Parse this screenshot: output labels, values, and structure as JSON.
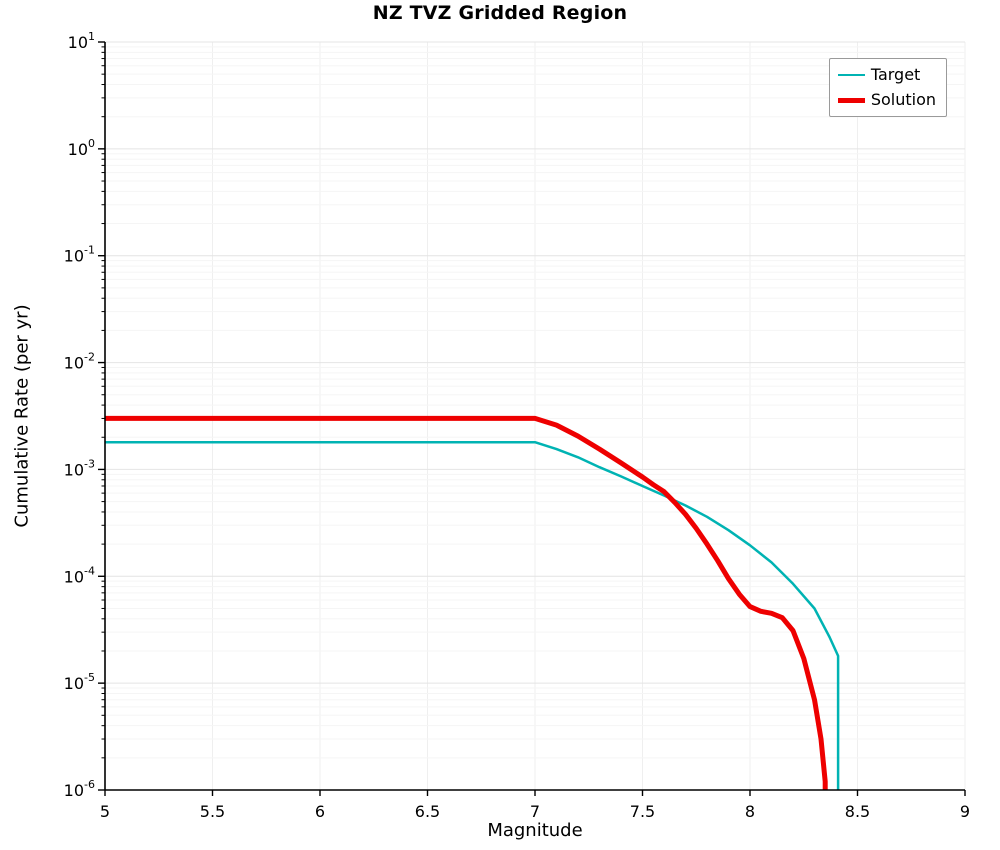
{
  "chart_data": {
    "type": "line",
    "title": "NZ TVZ Gridded Region",
    "xlabel": "Magnitude",
    "ylabel": "Cumulative Rate (per yr)",
    "xlim": [
      5,
      9
    ],
    "xticks": [
      5,
      5.5,
      6,
      6.5,
      7,
      7.5,
      8,
      8.5,
      9
    ],
    "yscale": "log",
    "ylim_exp": [
      -6,
      1
    ],
    "grid": true,
    "legend_position": "top-right",
    "colors": {
      "target": "#00b3b3",
      "solution": "#ee0000",
      "grid_major": "#e4e4e4",
      "grid_minor": "#f5f5f5",
      "axis": "#000000"
    },
    "series": [
      {
        "name": "Target",
        "color": "#00b3b3",
        "width": 2.5,
        "x": [
          5.0,
          7.0,
          7.1,
          7.2,
          7.3,
          7.4,
          7.5,
          7.6,
          7.7,
          7.8,
          7.9,
          8.0,
          8.1,
          8.2,
          8.3,
          8.37,
          8.41,
          8.41
        ],
        "y": [
          0.0018,
          0.0018,
          0.00155,
          0.0013,
          0.00105,
          0.00086,
          0.0007,
          0.00057,
          0.00046,
          0.00036,
          0.00027,
          0.000195,
          0.000135,
          8.5e-05,
          5e-05,
          2.7e-05,
          1.8e-05,
          8e-07
        ]
      },
      {
        "name": "Solution",
        "color": "#ee0000",
        "width": 5,
        "x": [
          5.0,
          7.0,
          7.1,
          7.2,
          7.3,
          7.4,
          7.5,
          7.55,
          7.6,
          7.65,
          7.7,
          7.75,
          7.8,
          7.85,
          7.9,
          7.95,
          8.0,
          8.05,
          8.1,
          8.15,
          8.2,
          8.25,
          8.3,
          8.33,
          8.35,
          8.35
        ],
        "y": [
          0.003,
          0.003,
          0.0026,
          0.00205,
          0.00155,
          0.00115,
          0.00085,
          0.00072,
          0.00062,
          0.00049,
          0.00038,
          0.00028,
          0.0002,
          0.00014,
          9.5e-05,
          6.8e-05,
          5.2e-05,
          4.7e-05,
          4.5e-05,
          4.1e-05,
          3.1e-05,
          1.7e-05,
          7e-06,
          3e-06,
          1.2e-06,
          7e-07
        ]
      }
    ]
  }
}
